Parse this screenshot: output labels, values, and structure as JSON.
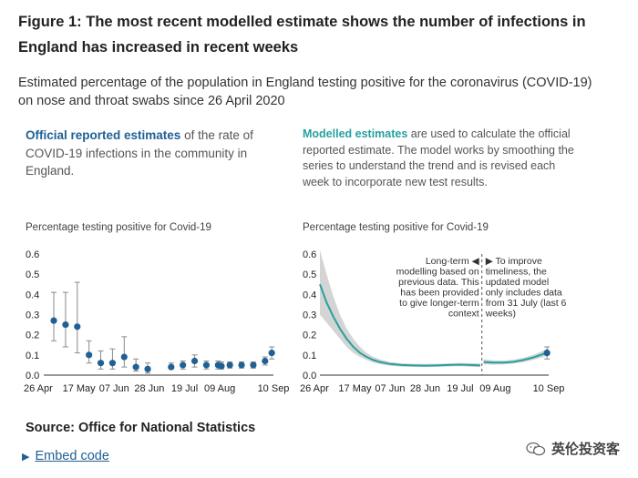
{
  "title": "Figure 1: The most recent modelled estimate shows the number of infections in England has increased in recent weeks",
  "subtitle": "Estimated percentage of the population in England testing positive for the coronavirus (COVID-19) on nose and throat swabs since 26 April 2020",
  "left_panel": {
    "highlight": "Official reported estimates",
    "text": " of the rate of COVID-19 infections in the community in England.",
    "chart_label": "Percentage testing positive for Covid-19"
  },
  "right_panel": {
    "highlight": "Modelled estimates",
    "text": " are used to calculate the official reported estimate. The model works by smoothing the series to understand the trend and is revised each week to incorporate new test results.",
    "chart_label": "Percentage testing positive for Covid-19",
    "annotation_left": [
      "Long-term ◀",
      "modelling based on",
      "previous data. This",
      "has been provided",
      "to give longer-term",
      "context"
    ],
    "annotation_right": [
      "▶ To improve",
      "timeliness, the",
      "updated model",
      "only includes data",
      "from 31 July (last 6",
      "weeks)"
    ]
  },
  "source": "Source: Office for National Statistics",
  "embed_label": "Embed code",
  "watermark": "英伦投资客",
  "colors": {
    "blue": "#206095",
    "teal": "#27a0a0",
    "ci_band": "#d4d4d4"
  },
  "chart_data": [
    {
      "type": "scatter",
      "y_ticks": [
        "0.0",
        "0.1",
        "0.2",
        "0.3",
        "0.4",
        "0.5",
        "0.6"
      ],
      "ylim": [
        0,
        0.6
      ],
      "x_ticks": [
        "26 Apr",
        "17 May",
        "07 Jun",
        "28 Jun",
        "19 Jul",
        "09 Aug",
        "10 Sep"
      ],
      "x_tick_days": [
        0,
        21,
        42,
        63,
        84,
        105,
        137
      ],
      "xlim": [
        0,
        137
      ],
      "points": [
        {
          "day": 6,
          "y": 0.27,
          "lo": 0.17,
          "hi": 0.41
        },
        {
          "day": 13,
          "y": 0.25,
          "lo": 0.14,
          "hi": 0.41
        },
        {
          "day": 20,
          "y": 0.24,
          "lo": 0.11,
          "hi": 0.46
        },
        {
          "day": 27,
          "y": 0.1,
          "lo": 0.06,
          "hi": 0.17
        },
        {
          "day": 34,
          "y": 0.06,
          "lo": 0.03,
          "hi": 0.12
        },
        {
          "day": 41,
          "y": 0.06,
          "lo": 0.03,
          "hi": 0.13
        },
        {
          "day": 48,
          "y": 0.09,
          "lo": 0.04,
          "hi": 0.19
        },
        {
          "day": 55,
          "y": 0.04,
          "lo": 0.02,
          "hi": 0.08
        },
        {
          "day": 62,
          "y": 0.03,
          "lo": 0.01,
          "hi": 0.06
        },
        {
          "day": 76,
          "y": 0.04,
          "lo": 0.03,
          "hi": 0.06
        },
        {
          "day": 83,
          "y": 0.05,
          "lo": 0.03,
          "hi": 0.07
        },
        {
          "day": 90,
          "y": 0.07,
          "lo": 0.04,
          "hi": 0.1
        },
        {
          "day": 97,
          "y": 0.05,
          "lo": 0.03,
          "hi": 0.07
        },
        {
          "day": 104,
          "y": 0.05,
          "lo": 0.03,
          "hi": 0.07
        },
        {
          "day": 106,
          "y": 0.045,
          "lo": 0.03,
          "hi": 0.065
        },
        {
          "day": 111,
          "y": 0.05,
          "lo": 0.035,
          "hi": 0.065
        },
        {
          "day": 118,
          "y": 0.05,
          "lo": 0.035,
          "hi": 0.065
        },
        {
          "day": 125,
          "y": 0.05,
          "lo": 0.035,
          "hi": 0.065
        },
        {
          "day": 132,
          "y": 0.07,
          "lo": 0.05,
          "hi": 0.09
        },
        {
          "day": 136,
          "y": 0.11,
          "lo": 0.08,
          "hi": 0.14
        }
      ]
    },
    {
      "type": "line",
      "y_ticks": [
        "0.0",
        "0.1",
        "0.2",
        "0.3",
        "0.4",
        "0.5",
        "0.6"
      ],
      "ylim": [
        0,
        0.6
      ],
      "x_ticks": [
        "26 Apr",
        "17 May",
        "07 Jun",
        "28 Jun",
        "19 Jul",
        "09 Aug",
        "10 Sep"
      ],
      "x_tick_days": [
        0,
        21,
        42,
        63,
        84,
        105,
        137
      ],
      "xlim": [
        0,
        137
      ],
      "divider_day": 97,
      "series": [
        {
          "x": [
            0,
            4,
            8,
            12,
            16,
            20,
            24,
            28,
            32,
            36,
            42,
            49,
            56,
            63,
            70,
            77,
            84,
            90,
            96
          ],
          "y": [
            0.45,
            0.36,
            0.29,
            0.23,
            0.18,
            0.14,
            0.11,
            0.09,
            0.075,
            0.065,
            0.055,
            0.05,
            0.048,
            0.047,
            0.048,
            0.05,
            0.052,
            0.05,
            0.048
          ],
          "lo": [
            0.3,
            0.26,
            0.22,
            0.18,
            0.14,
            0.11,
            0.09,
            0.075,
            0.062,
            0.054,
            0.046,
            0.042,
            0.041,
            0.04,
            0.041,
            0.043,
            0.044,
            0.042,
            0.04
          ],
          "hi": [
            0.62,
            0.5,
            0.39,
            0.3,
            0.23,
            0.18,
            0.14,
            0.11,
            0.09,
            0.078,
            0.065,
            0.058,
            0.056,
            0.055,
            0.056,
            0.058,
            0.06,
            0.059,
            0.058
          ]
        },
        {
          "x": [
            98,
            104,
            110,
            116,
            122,
            128,
            134,
            137
          ],
          "y": [
            0.065,
            0.062,
            0.062,
            0.066,
            0.075,
            0.088,
            0.105,
            0.115
          ],
          "lo": [
            0.053,
            0.052,
            0.053,
            0.057,
            0.065,
            0.076,
            0.09,
            0.097
          ],
          "hi": [
            0.079,
            0.073,
            0.072,
            0.076,
            0.086,
            0.101,
            0.122,
            0.135
          ]
        }
      ],
      "points": [
        {
          "day": 136,
          "y": 0.11,
          "lo": 0.08,
          "hi": 0.14
        }
      ]
    }
  ]
}
